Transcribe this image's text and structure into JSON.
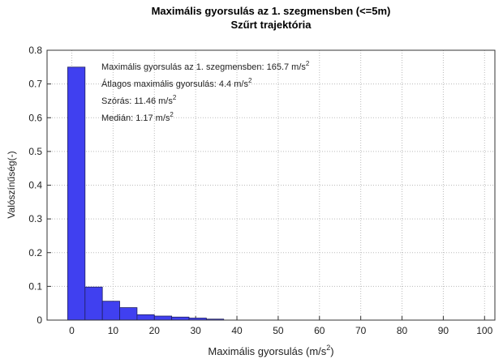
{
  "chart_data": {
    "type": "histogram",
    "title": "Maximális gyorsulás az 1. szegmensben (<=5m)",
    "subtitle": "Szűrt trajektória",
    "xlabel": [
      "Maximális gyorsulás (m/s",
      "2",
      ")"
    ],
    "ylabel": "Valószínűség(-)",
    "annotations": [
      {
        "text": "Maximális gyorsulás az 1. szegmensben: 165.7 m/s",
        "sup": "2"
      },
      {
        "text": "Átlagos maximális gyorsulás: 4.4 m/s",
        "sup": "2"
      },
      {
        "text": "Szórás: 11.46 m/s",
        "sup": "2"
      },
      {
        "text": "Medián: 1.17 m/s",
        "sup": "2"
      }
    ],
    "bins": [
      -1,
      3.2,
      7.4,
      11.6,
      15.8,
      20,
      24.2,
      28.4,
      32.6,
      36.8
    ],
    "values": [
      0.75,
      0.098,
      0.056,
      0.037,
      0.016,
      0.012,
      0.009,
      0.006,
      0.003
    ],
    "color": "#4040f0",
    "xlim": [
      -6,
      102.5
    ],
    "xticks": [
      0,
      10,
      20,
      30,
      40,
      50,
      60,
      70,
      80,
      90,
      100
    ],
    "ylim": [
      0,
      0.8
    ],
    "yticks": [
      0,
      0.1,
      0.2,
      0.3,
      0.4,
      0.5,
      0.6,
      0.7,
      0.8
    ],
    "grid": true
  }
}
